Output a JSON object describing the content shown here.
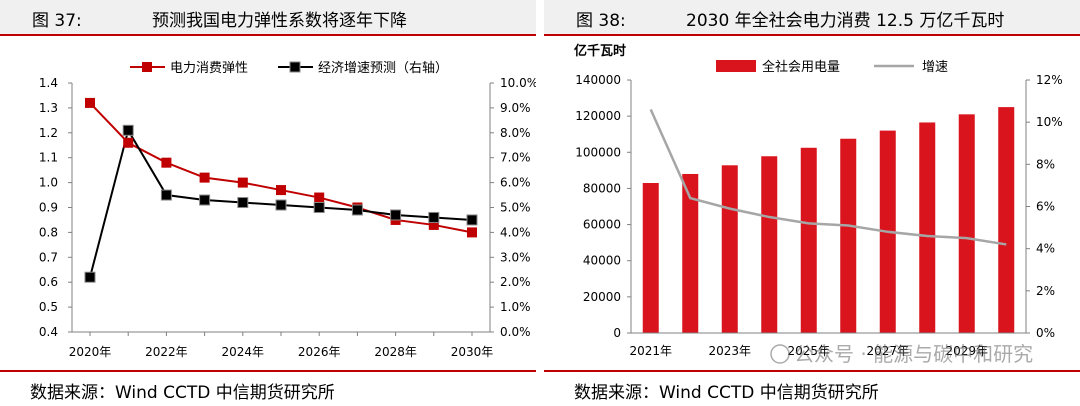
{
  "charts": [
    {
      "fig_num": "图 37:",
      "title": "预测我国电力弹性系数将逐年下降",
      "source": "数据来源：Wind CCTD 中信期货研究所"
    },
    {
      "fig_num": "图 38:",
      "title": "2030 年全社会电力消费 12.5 万亿千瓦时",
      "source": "数据来源：Wind CCTD 中信期货研究所"
    }
  ],
  "watermark": "公众号 · 能源与碳中和研究",
  "colors": {
    "accent": "#c00000",
    "bar": "#d9141c",
    "black": "#000000",
    "gray": "#a6a6a6"
  },
  "chart_data": [
    {
      "type": "line",
      "x": [
        2020,
        2021,
        2022,
        2023,
        2024,
        2025,
        2026,
        2027,
        2028,
        2029,
        2030
      ],
      "x_tick_labels": [
        "2020年",
        "2022年",
        "2024年",
        "2026年",
        "2028年",
        "2030年"
      ],
      "ylim_left": [
        0.4,
        1.4
      ],
      "y_left_ticks": [
        "0.4",
        "0.5",
        "0.6",
        "0.7",
        "0.8",
        "0.9",
        "1.0",
        "1.1",
        "1.2",
        "1.3",
        "1.4"
      ],
      "ylim_right": [
        0,
        10
      ],
      "y_right_ticks": [
        "0.0%",
        "1.0%",
        "2.0%",
        "3.0%",
        "4.0%",
        "5.0%",
        "6.0%",
        "7.0%",
        "8.0%",
        "9.0%",
        "10.0%"
      ],
      "series": [
        {
          "name": "电力消费弹性",
          "axis": "left",
          "values": [
            1.32,
            1.16,
            1.08,
            1.02,
            1.0,
            0.97,
            0.94,
            0.9,
            0.85,
            0.83,
            0.8
          ]
        },
        {
          "name": "经济增速预测（右轴）",
          "axis": "right",
          "values": [
            2.2,
            8.1,
            5.5,
            5.3,
            5.2,
            5.1,
            5.0,
            4.9,
            4.7,
            4.6,
            4.5
          ]
        }
      ],
      "legend": "top-center",
      "grid": false
    },
    {
      "type": "bar",
      "y_unit_label": "亿千瓦时",
      "categories": [
        "2021年",
        "2022年",
        "2023年",
        "2024年",
        "2025年",
        "2026年",
        "2027年",
        "2028年",
        "2029年",
        "2030年"
      ],
      "x_tick_labels": [
        "2021年",
        "2023年",
        "2025年",
        "2027年",
        "2029年"
      ],
      "ylim_left": [
        0,
        140000
      ],
      "y_left_ticks": [
        "0",
        "20000",
        "40000",
        "60000",
        "80000",
        "100000",
        "120000",
        "140000"
      ],
      "ylim_right": [
        0,
        12
      ],
      "y_right_ticks": [
        "0%",
        "2%",
        "4%",
        "6%",
        "8%",
        "10%",
        "12%"
      ],
      "series": [
        {
          "name": "全社会用电量",
          "axis": "left",
          "type": "bar",
          "values": [
            83000,
            88000,
            92800,
            97800,
            102500,
            107500,
            112000,
            116500,
            121000,
            125000
          ]
        },
        {
          "name": "增速",
          "axis": "right",
          "type": "line",
          "values": [
            10.6,
            6.4,
            5.9,
            5.5,
            5.2,
            5.1,
            4.8,
            4.6,
            4.5,
            4.2
          ]
        }
      ],
      "legend": "top-center",
      "grid": false
    }
  ]
}
